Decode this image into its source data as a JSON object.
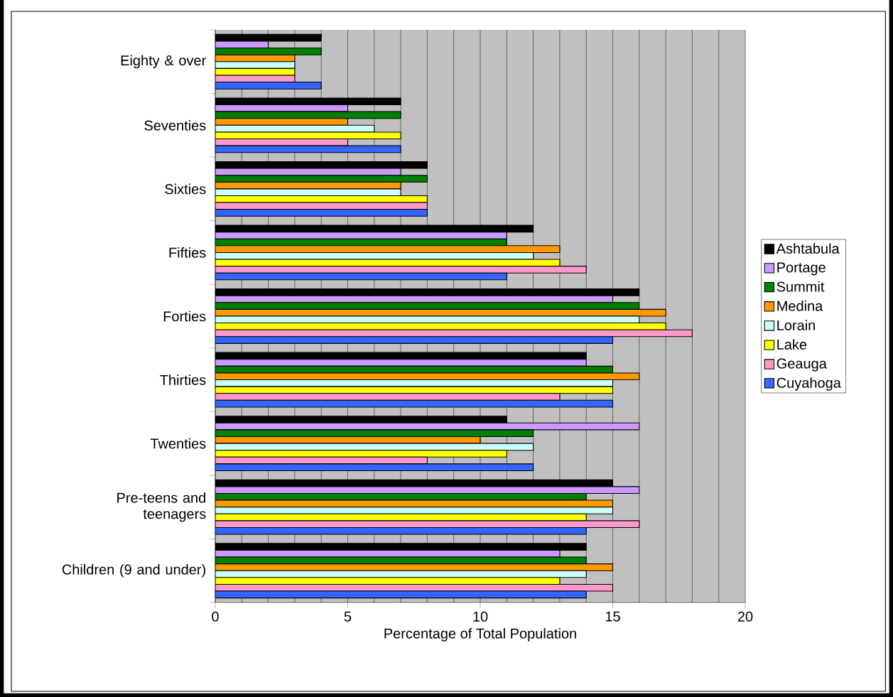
{
  "chart_data": {
    "type": "bar",
    "orientation": "horizontal",
    "xlabel": "Percentage of Total Population",
    "categories": [
      "Eighty & over",
      "Seventies",
      "Sixties",
      "Fifties",
      "Forties",
      "Thirties",
      "Twenties",
      "Pre-teens and teenagers",
      "Children (9 and under)"
    ],
    "series": [
      {
        "name": "Ashtabula",
        "color": "#000000",
        "values": [
          4,
          7,
          8,
          12,
          16,
          14,
          11,
          15,
          14
        ]
      },
      {
        "name": "Portage",
        "color": "#cc99ff",
        "values": [
          2,
          5,
          7,
          11,
          15,
          14,
          16,
          16,
          13
        ]
      },
      {
        "name": "Summit",
        "color": "#008000",
        "values": [
          4,
          7,
          8,
          11,
          16,
          15,
          12,
          14,
          14
        ]
      },
      {
        "name": "Medina",
        "color": "#ff9900",
        "values": [
          3,
          5,
          7,
          13,
          17,
          16,
          10,
          15,
          15
        ]
      },
      {
        "name": "Lorain",
        "color": "#ccffff",
        "values": [
          3,
          6,
          7,
          12,
          16,
          15,
          12,
          15,
          14
        ]
      },
      {
        "name": "Lake",
        "color": "#ffff00",
        "values": [
          3,
          7,
          8,
          13,
          17,
          15,
          11,
          14,
          13
        ]
      },
      {
        "name": "Geauga",
        "color": "#ff99cc",
        "values": [
          3,
          5,
          8,
          14,
          18,
          13,
          8,
          16,
          15
        ]
      },
      {
        "name": "Cuyahoga",
        "color": "#3366ff",
        "values": [
          4,
          7,
          8,
          11,
          15,
          15,
          12,
          14,
          14
        ]
      }
    ],
    "xlim": [
      0,
      20
    ],
    "xticks": [
      0,
      5,
      10,
      15,
      20
    ],
    "grid": "x",
    "legend": "right"
  }
}
